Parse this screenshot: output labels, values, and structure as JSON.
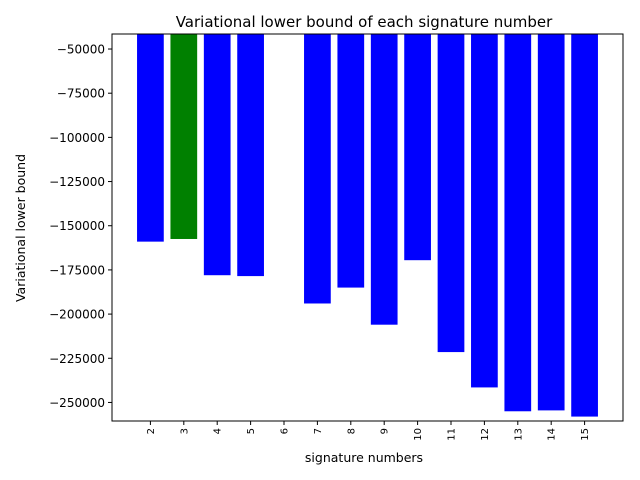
{
  "chart_data": {
    "type": "bar",
    "title": "Variational lower bound of each signature number",
    "xlabel": "signature numbers",
    "ylabel": "Variational lower bound",
    "categories": [
      "2",
      "3",
      "4",
      "5",
      "6",
      "7",
      "8",
      "9",
      "10",
      "11",
      "12",
      "13",
      "14",
      "15"
    ],
    "values": [
      -159000,
      -157500,
      -178000,
      -178500,
      null,
      -194000,
      -185000,
      -206000,
      -169500,
      -221500,
      -241500,
      -255000,
      -254500,
      -258000
    ],
    "colors": [
      "#0000ff",
      "#008000",
      "#0000ff",
      "#0000ff",
      "#0000ff",
      "#0000ff",
      "#0000ff",
      "#0000ff",
      "#0000ff",
      "#0000ff",
      "#0000ff",
      "#0000ff",
      "#0000ff",
      "#0000ff"
    ],
    "highlight_category": "3",
    "ylim": [
      -260500,
      -41500
    ],
    "yticks": [
      -50000,
      -75000,
      -100000,
      -125000,
      -150000,
      -175000,
      -200000,
      -225000,
      -250000
    ],
    "ytick_labels": [
      "−50000",
      "−75000",
      "−100000",
      "−125000",
      "−150000",
      "−175000",
      "−200000",
      "−225000",
      "−250000"
    ],
    "grid": false,
    "legend": false
  }
}
